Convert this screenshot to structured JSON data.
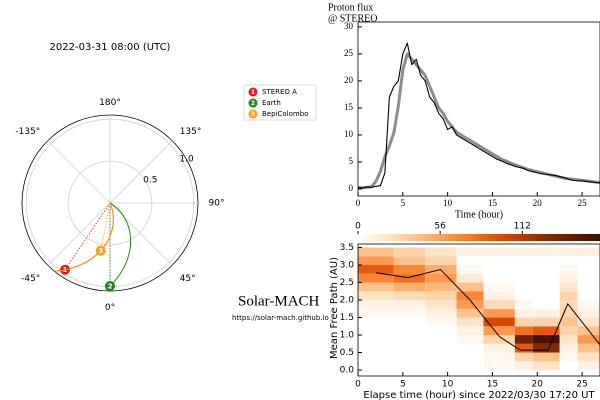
{
  "chart_data": [
    {
      "type": "polar",
      "title": "2022-03-31 08:00 (UTC)",
      "rlim": [
        0,
        1.05
      ],
      "rticks": [
        0.5,
        {
          "value": 1,
          "label": "1.0"
        }
      ],
      "thetaticks": [
        {
          "value": 180,
          "label": "180°"
        },
        {
          "value": 135,
          "label": "135°"
        },
        {
          "value": 90,
          "label": "90°"
        },
        {
          "value": 45,
          "label": "45°"
        },
        {
          "value": 0,
          "label": "0°"
        },
        {
          "value": -45,
          "label": "-45°"
        },
        {
          "value": -135,
          "label": "-135°"
        }
      ],
      "legend": "outside right",
      "series": [
        {
          "name": "STEREO A",
          "marker": "1",
          "color": "#e41a1c",
          "r": 0.96,
          "theta": -34
        },
        {
          "name": "Earth",
          "marker": "2",
          "color": "#1a8a1a",
          "r": 0.99,
          "theta": 0
        },
        {
          "name": "BepiColombo",
          "marker": "3",
          "color": "#ff9f1c",
          "r": 0.58,
          "theta": -11
        }
      ],
      "annotations": [
        "Solar-MACH",
        "https://solar-mach.github.io"
      ]
    },
    {
      "type": "line",
      "title": "Proton flux",
      "subtitle": "@ STEREO",
      "x_label": "Time (hour)",
      "x": [
        0,
        0.5,
        1,
        1.5,
        2,
        2.5,
        3,
        3.5,
        4,
        4.5,
        5,
        5.5,
        6,
        6.5,
        7,
        7.5,
        8,
        8.5,
        9,
        9.5,
        10,
        10.5,
        11,
        11.5,
        12,
        12.5,
        13,
        13.5,
        14,
        14.5,
        15,
        15.5,
        16,
        16.5,
        17,
        17.5,
        18,
        18.5,
        19,
        19.5,
        20,
        20.5,
        21,
        21.5,
        22,
        22.5,
        23,
        23.5,
        24,
        24.5,
        25,
        25.5,
        26,
        26.5,
        27
      ],
      "series": [
        {
          "color": "#8c8c8c",
          "values": [
            0.2,
            0.2,
            0.3,
            0.4,
            1.4,
            3.2,
            6,
            8,
            10.4,
            15.3,
            22,
            25,
            24,
            23,
            22,
            21,
            19,
            17,
            15,
            14,
            12.5,
            11.5,
            10.5,
            10,
            9.5,
            9,
            8.5,
            8,
            7.5,
            7,
            6.5,
            6,
            5.5,
            5.2,
            4.8,
            4.5,
            4.2,
            3.9,
            3.6,
            3.4,
            3.2,
            3,
            2.8,
            2.6,
            2.4,
            2.2,
            2,
            1.9,
            1.8,
            1.7,
            1.6,
            1.5,
            1.4,
            1.3,
            1.2
          ]
        },
        {
          "color": "#000000",
          "values": [
            0.3,
            0.2,
            0.4,
            0.3,
            0.5,
            0.6,
            3,
            17,
            19,
            20,
            25,
            27,
            23,
            24,
            21,
            20,
            17,
            16,
            14,
            13,
            11,
            11.5,
            10,
            9.5,
            9,
            8.5,
            8,
            7.5,
            7,
            6.5,
            6,
            5.5,
            5.2,
            4.8,
            4.5,
            4.2,
            4,
            3.8,
            3.4,
            3.2,
            3,
            2.8,
            2.7,
            2.6,
            2.5,
            2.3,
            2.1,
            1.8,
            1.6,
            1.5,
            1.5,
            1.4,
            1.3,
            1.2,
            1.1
          ]
        }
      ],
      "xlim": [
        0,
        27
      ],
      "xticks": [
        0,
        5,
        10,
        15,
        20,
        25
      ],
      "ylim": [
        -1.3,
        30.9
      ],
      "yticks": [
        0,
        5,
        10,
        15,
        20,
        25,
        30
      ]
    },
    {
      "type": "heatmap",
      "x_label": "Elapse time (hour) since 2022/03/30 17:20 UT",
      "y_label": "Mean Free Path (AU)",
      "x_edges": [
        0,
        4,
        7.5,
        11,
        14,
        17.5,
        19.5,
        22.5,
        24.5,
        27
      ],
      "y_edges": [
        0,
        0.25,
        0.5,
        0.75,
        1,
        1.25,
        1.5,
        1.75,
        2,
        2.25,
        2.5,
        2.75,
        3,
        3.25,
        3.5
      ],
      "z": [
        [
          0,
          0,
          0,
          0,
          0,
          0,
          5,
          10,
          20,
          40,
          70,
          90,
          60,
          40
        ],
        [
          0,
          0,
          0,
          0,
          0,
          0,
          5,
          10,
          25,
          50,
          80,
          70,
          40,
          30
        ],
        [
          0,
          0,
          0,
          0,
          0,
          5,
          10,
          20,
          30,
          45,
          60,
          50,
          30,
          20
        ],
        [
          0,
          0,
          0,
          5,
          10,
          20,
          40,
          60,
          70,
          40,
          15,
          5,
          0,
          10
        ],
        [
          5,
          5,
          10,
          30,
          60,
          100,
          60,
          25,
          10,
          5,
          0,
          0,
          0,
          10
        ],
        [
          10,
          30,
          90,
          140,
          80,
          30,
          10,
          5,
          0,
          0,
          0,
          0,
          0,
          10
        ],
        [
          20,
          40,
          130,
          160,
          90,
          30,
          10,
          0,
          0,
          0,
          0,
          0,
          0,
          10
        ],
        [
          0,
          5,
          10,
          20,
          30,
          40,
          30,
          25,
          30,
          20,
          10,
          5,
          0,
          10
        ],
        [
          10,
          20,
          40,
          60,
          40,
          20,
          10,
          5,
          0,
          0,
          0,
          0,
          0,
          10
        ]
      ],
      "colormap": [
        "#ffffff",
        "#fdd0a2",
        "#fd8d3c",
        "#d94801",
        "#7f2704",
        "#3b0f00"
      ],
      "clim": [
        0,
        165
      ],
      "cticks": [
        0,
        56,
        112
      ],
      "line": {
        "color": "#000000",
        "x": [
          2,
          5.6,
          9.2,
          12.5,
          15.8,
          18.1,
          21.2,
          23.4,
          27
        ],
        "values": [
          2.78,
          2.64,
          2.87,
          2.0,
          0.95,
          0.57,
          0.57,
          1.89,
          0.72
        ]
      },
      "xlim": [
        0,
        27
      ],
      "xticks": [
        0,
        5,
        10,
        15,
        20,
        25
      ],
      "ylim": [
        -0.17,
        3.6
      ],
      "yticks": [
        {
          "value": 0,
          "label": "0.0"
        },
        0.5,
        {
          "value": 1,
          "label": "1.0"
        },
        1.5,
        {
          "value": 2,
          "label": "2.0"
        },
        2.5,
        {
          "value": 3,
          "label": "3.0"
        },
        3.5
      ]
    }
  ]
}
